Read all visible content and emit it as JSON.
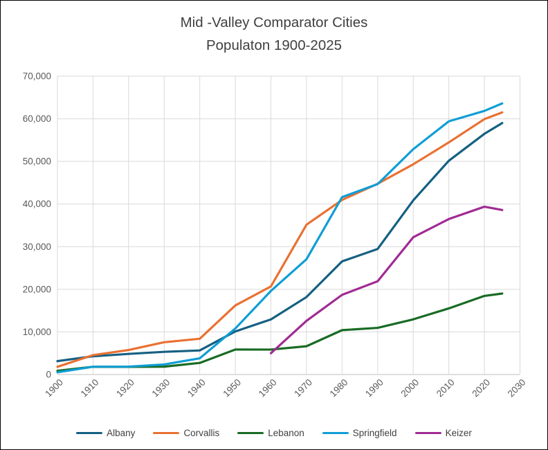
{
  "chart_data": {
    "type": "line",
    "title": "Mid -Valley Comparator Cities",
    "subtitle": "Populaton 1900-2025",
    "x": [
      1900,
      1910,
      1920,
      1930,
      1940,
      1950,
      1960,
      1970,
      1980,
      1990,
      2000,
      2010,
      2020,
      2025
    ],
    "series": [
      {
        "name": "Albany",
        "color": "#156082",
        "values": [
          3149,
          4275,
          4840,
          5325,
          5654,
          10115,
          12926,
          18181,
          26546,
          29462,
          40852,
          50158,
          56472,
          59000
        ]
      },
      {
        "name": "Corvallis",
        "color": "#E97132",
        "values": [
          1819,
          4552,
          5752,
          7585,
          8392,
          16207,
          20669,
          35153,
          40960,
          44757,
          49322,
          54462,
          59922,
          61500
        ]
      },
      {
        "name": "Lebanon",
        "color": "#196B24",
        "values": [
          876,
          1820,
          1801,
          1851,
          2729,
          5873,
          5858,
          6636,
          10413,
          10950,
          12950,
          15518,
          18447,
          19000
        ]
      },
      {
        "name": "Springfield",
        "color": "#0F9ED5",
        "values": [
          522,
          1838,
          1855,
          2364,
          3805,
          10807,
          19616,
          27047,
          41621,
          44683,
          52864,
          59403,
          61851,
          63600
        ]
      },
      {
        "name": "Keizer",
        "color": "#A02B93",
        "values": [
          null,
          null,
          null,
          null,
          null,
          null,
          5000,
          12600,
          18700,
          21884,
          32203,
          36478,
          39376,
          38600
        ]
      }
    ],
    "xlim": [
      1900,
      2030
    ],
    "ylim": [
      0,
      70000
    ],
    "x_ticks": [
      1900,
      1910,
      1920,
      1930,
      1940,
      1950,
      1960,
      1970,
      1980,
      1990,
      2000,
      2010,
      2020,
      2030
    ],
    "y_ticks": [
      0,
      10000,
      20000,
      30000,
      40000,
      50000,
      60000,
      70000
    ],
    "grid": true,
    "legend_position": "bottom"
  },
  "styles": {
    "background": "#FFFFFF",
    "frame_border": "#000000",
    "grid_color": "#D9D9D9",
    "axis_color": "#BFBFBF",
    "title_color": "#404040",
    "tick_label_color": "#595959",
    "legend_label_color": "#404040"
  }
}
